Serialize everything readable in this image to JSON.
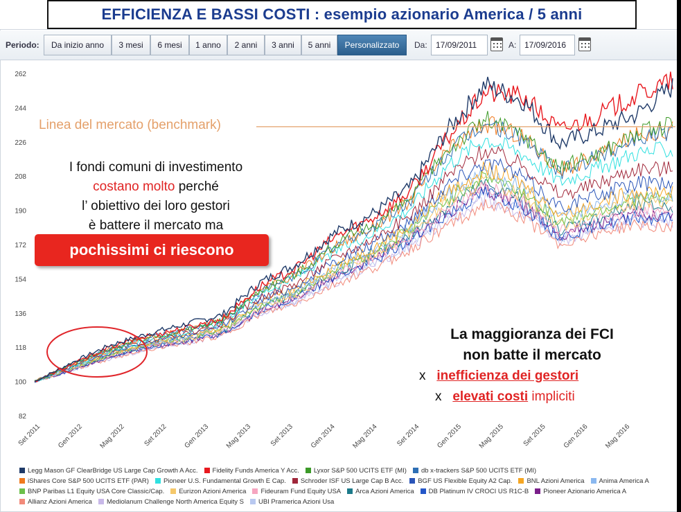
{
  "title": "EFFICIENZA E BASSI COSTI : esempio azionario America / 5 anni",
  "toolbar": {
    "period_label": "Periodo:",
    "tabs": [
      "Da inizio anno",
      "3 mesi",
      "6 mesi",
      "1 anno",
      "2 anni",
      "3 anni",
      "5 anni",
      "Personalizzato"
    ],
    "active_tab": "Personalizzato",
    "from_label": "Da:",
    "from_date": "17/09/2011",
    "to_label": "A:",
    "to_date": "17/09/2016"
  },
  "annotations": {
    "benchmark": "Linea del mercato (benchmark)",
    "fondi_1": "I fondi comuni di investimento",
    "fondi_2a": "costano molto",
    "fondi_2b": " perché",
    "fondi_3": "l’ obiettivo dei loro gestori",
    "fondi_4": "è battere il mercato ma",
    "highlight": "pochissimi ci riescono",
    "maggioranza_1": "La maggioranza dei FCI",
    "maggioranza_2": "non batte il mercato",
    "reason_x": "x",
    "reason_1": "inefficienza dei gestori",
    "reason_2": "elevati costi",
    "reason_2b": " impliciti"
  },
  "chart_data": {
    "type": "line",
    "title": "",
    "xlabel": "",
    "ylabel": "",
    "ylim": [
      82,
      262
    ],
    "yticks": [
      82,
      100,
      118,
      136,
      154,
      172,
      190,
      208,
      226,
      244,
      262
    ],
    "xticks": [
      "Set 2011",
      "Gen 2012",
      "Mag 2012",
      "Set 2012",
      "Gen 2013",
      "Mag 2013",
      "Set 2013",
      "Gen 2014",
      "Mag 2014",
      "Set 2014",
      "Gen 2015",
      "Mag 2015",
      "Set 2015",
      "Gen 2016",
      "Mag 2016"
    ],
    "benchmark_level": 234,
    "grid": false,
    "legend_position": "bottom",
    "series": [
      {
        "name": "Legg Mason GF ClearBridge US Large Cap Growth A Acc.",
        "color": "#1f3a68",
        "end": 255,
        "values": [
          100,
          110,
          119,
          125,
          130,
          135,
          152,
          162,
          178,
          188,
          202,
          232,
          256,
          248,
          225,
          232,
          240,
          255
        ]
      },
      {
        "name": "Fidelity Funds America Y Acc.",
        "color": "#e8191f",
        "end": 258,
        "values": [
          100,
          109,
          118,
          124,
          128,
          133,
          150,
          160,
          176,
          186,
          200,
          228,
          252,
          250,
          232,
          240,
          250,
          258
        ]
      },
      {
        "name": "Lyxor S&P 500 UCITS ETF (MI)",
        "color": "#3c9a28",
        "end": 235,
        "values": [
          100,
          109,
          117,
          123,
          127,
          132,
          148,
          157,
          172,
          182,
          196,
          222,
          238,
          230,
          212,
          220,
          230,
          235
        ]
      },
      {
        "name": "db x-trackers S&P 500 UCITS ETF (MI)",
        "color": "#2e6fb5",
        "end": 232,
        "values": [
          100,
          109,
          117,
          123,
          127,
          132,
          147,
          156,
          171,
          181,
          195,
          220,
          236,
          228,
          210,
          218,
          228,
          232
        ]
      },
      {
        "name": "iShares Core S&P 500 UCITS ETF (PAR)",
        "color": "#f07a1e",
        "end": 233,
        "values": [
          100,
          109,
          117,
          123,
          127,
          132,
          148,
          157,
          171,
          181,
          195,
          221,
          236,
          229,
          211,
          219,
          229,
          233
        ]
      },
      {
        "name": "Pioneer U.S. Fundamental Growth E Cap.",
        "color": "#30e0e0",
        "end": 222,
        "values": [
          100,
          108,
          116,
          122,
          126,
          131,
          146,
          155,
          168,
          178,
          191,
          214,
          228,
          220,
          205,
          212,
          220,
          222
        ]
      },
      {
        "name": "Schroder ISF US Large Cap B Acc.",
        "color": "#a0273a",
        "end": 212,
        "values": [
          100,
          108,
          116,
          121,
          125,
          130,
          144,
          152,
          165,
          175,
          187,
          208,
          222,
          214,
          198,
          204,
          212,
          212
        ]
      },
      {
        "name": "BGF US Flexible Equity A2 Cap.",
        "color": "#2a55b8",
        "end": 204,
        "values": [
          100,
          108,
          115,
          121,
          124,
          129,
          143,
          150,
          163,
          172,
          184,
          204,
          216,
          208,
          192,
          198,
          204,
          204
        ]
      },
      {
        "name": "BNL Azioni America",
        "color": "#f5a623",
        "end": 200,
        "values": [
          100,
          108,
          115,
          120,
          124,
          128,
          142,
          149,
          161,
          170,
          182,
          200,
          212,
          204,
          188,
          194,
          200,
          200
        ]
      },
      {
        "name": "Anima America A",
        "color": "#8ab8f0",
        "end": 198,
        "values": [
          100,
          107,
          115,
          120,
          123,
          128,
          141,
          148,
          160,
          169,
          181,
          198,
          210,
          202,
          186,
          192,
          198,
          198
        ]
      },
      {
        "name": "BNP Paribas L1 Equity USA Core Classic/Cap.",
        "color": "#6cc04a",
        "end": 196,
        "values": [
          100,
          107,
          114,
          120,
          123,
          127,
          140,
          147,
          159,
          168,
          180,
          196,
          208,
          200,
          184,
          190,
          196,
          196
        ]
      },
      {
        "name": "Eurizon Azioni America",
        "color": "#f5c86a",
        "end": 194,
        "values": [
          100,
          107,
          114,
          119,
          122,
          127,
          139,
          146,
          158,
          167,
          178,
          194,
          206,
          198,
          182,
          188,
          194,
          194
        ]
      },
      {
        "name": "Fideuram Fund Equity USA",
        "color": "#f6a5c0",
        "end": 190,
        "values": [
          100,
          107,
          114,
          119,
          122,
          126,
          138,
          145,
          156,
          165,
          176,
          191,
          203,
          195,
          179,
          185,
          190,
          190
        ]
      },
      {
        "name": "Arca Azioni America",
        "color": "#1c7a8a",
        "end": 192,
        "values": [
          100,
          107,
          114,
          119,
          122,
          126,
          139,
          146,
          157,
          166,
          177,
          192,
          204,
          196,
          180,
          186,
          192,
          192
        ]
      },
      {
        "name": "DB Platinum IV CROCI US R1C-B",
        "color": "#2456c8",
        "end": 186,
        "values": [
          100,
          106,
          113,
          118,
          121,
          125,
          137,
          144,
          155,
          163,
          174,
          188,
          200,
          192,
          176,
          182,
          186,
          186
        ]
      },
      {
        "name": "Pioneer Azionario America A",
        "color": "#7a1f8a",
        "end": 188,
        "values": [
          100,
          106,
          113,
          118,
          121,
          125,
          137,
          144,
          155,
          164,
          175,
          189,
          201,
          193,
          177,
          183,
          188,
          188
        ]
      },
      {
        "name": "Allianz Azioni America",
        "color": "#f28a7a",
        "end": 182,
        "values": [
          100,
          106,
          112,
          117,
          120,
          124,
          135,
          141,
          151,
          159,
          169,
          182,
          193,
          186,
          172,
          178,
          182,
          182
        ]
      },
      {
        "name": "Mediolanum Challenge North America Equity S",
        "color": "#c8b8e8",
        "end": 184,
        "values": [
          100,
          106,
          112,
          117,
          120,
          124,
          136,
          142,
          152,
          161,
          171,
          184,
          196,
          188,
          174,
          180,
          184,
          184
        ]
      },
      {
        "name": "UBI Pramerica Azioni Usa",
        "color": "#b8c8f0",
        "end": 186,
        "values": [
          100,
          106,
          113,
          117,
          121,
          125,
          136,
          143,
          153,
          162,
          172,
          186,
          198,
          190,
          175,
          181,
          186,
          186
        ]
      }
    ]
  }
}
